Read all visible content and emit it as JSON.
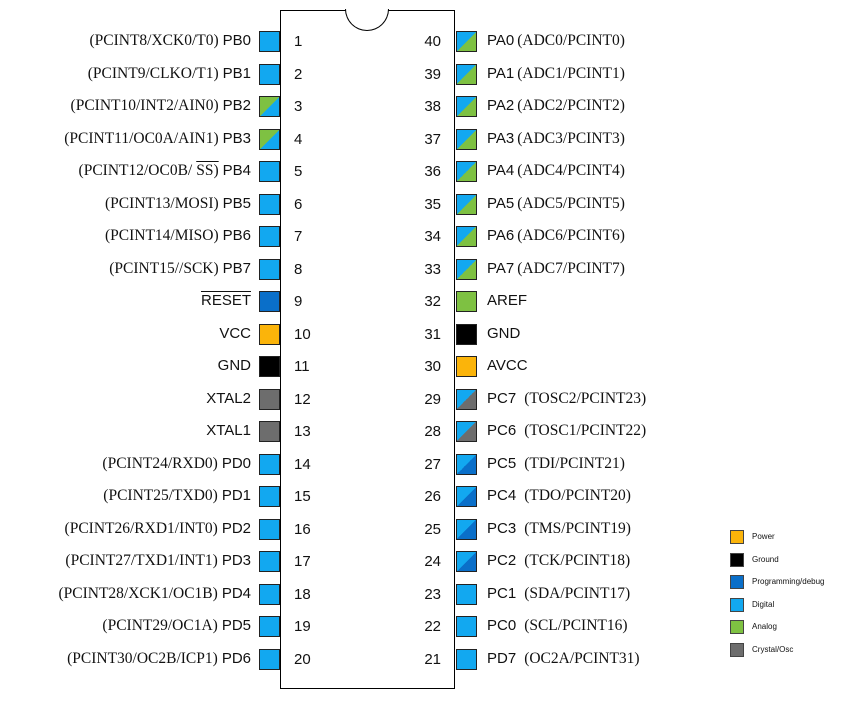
{
  "colors": {
    "power": "#fbb40a",
    "ground": "#000000",
    "programming": "#0a6fc9",
    "digital": "#12a8f0",
    "analog": "#7ec142",
    "crystal": "#6d6d6d"
  },
  "left_pins": [
    {
      "num": "1",
      "name": "PB0",
      "alt": "(PCINT8/XCK0/T0)",
      "kind": "digital"
    },
    {
      "num": "2",
      "name": "PB1",
      "alt": "(PCINT9/CLKO/T1)",
      "kind": "digital"
    },
    {
      "num": "3",
      "name": "PB2",
      "alt": "(PCINT10/INT2/AIN0)",
      "kind": "digital-analog"
    },
    {
      "num": "4",
      "name": "PB3",
      "alt": "(PCINT11/OC0A/AIN1)",
      "kind": "digital-analog"
    },
    {
      "num": "5",
      "name": "PB4",
      "alt": "(PCINT12/OC0B/",
      "alt_overline": "SS)",
      "kind": "digital"
    },
    {
      "num": "6",
      "name": "PB5",
      "alt": "(PCINT13/MOSI)",
      "kind": "digital"
    },
    {
      "num": "7",
      "name": "PB6",
      "alt": "(PCINT14/MISO)",
      "kind": "digital"
    },
    {
      "num": "8",
      "name": "PB7",
      "alt": "(PCINT15//SCK)",
      "kind": "digital"
    },
    {
      "num": "9",
      "name": "RESET",
      "alt": "",
      "overline": true,
      "kind": "programming"
    },
    {
      "num": "10",
      "name": "VCC",
      "alt": "",
      "kind": "power"
    },
    {
      "num": "11",
      "name": "GND",
      "alt": "",
      "kind": "ground"
    },
    {
      "num": "12",
      "name": "XTAL2",
      "alt": "",
      "kind": "crystal"
    },
    {
      "num": "13",
      "name": "XTAL1",
      "alt": "",
      "kind": "crystal"
    },
    {
      "num": "14",
      "name": "PD0",
      "alt": "(PCINT24/RXD0)",
      "kind": "digital"
    },
    {
      "num": "15",
      "name": "PD1",
      "alt": "(PCINT25/TXD0)",
      "kind": "digital"
    },
    {
      "num": "16",
      "name": "PD2",
      "alt": "(PCINT26/RXD1/INT0)",
      "kind": "digital"
    },
    {
      "num": "17",
      "name": "PD3",
      "alt": "(PCINT27/TXD1/INT1)",
      "kind": "digital"
    },
    {
      "num": "18",
      "name": "PD4",
      "alt": "(PCINT28/XCK1/OC1B)",
      "kind": "digital"
    },
    {
      "num": "19",
      "name": "PD5",
      "alt": "(PCINT29/OC1A)",
      "kind": "digital"
    },
    {
      "num": "20",
      "name": "PD6",
      "alt": "(PCINT30/OC2B/ICP1)",
      "kind": "digital"
    }
  ],
  "right_pins": [
    {
      "num": "40",
      "name": "PA0",
      "alt": "(ADC0/PCINT0)",
      "kind": "analog-digital"
    },
    {
      "num": "39",
      "name": "PA1",
      "alt": "(ADC1/PCINT1)",
      "kind": "analog-digital"
    },
    {
      "num": "38",
      "name": "PA2",
      "alt": "(ADC2/PCINT2)",
      "kind": "analog-digital"
    },
    {
      "num": "37",
      "name": "PA3",
      "alt": "(ADC3/PCINT3)",
      "kind": "analog-digital"
    },
    {
      "num": "36",
      "name": "PA4",
      "alt": "(ADC4/PCINT4)",
      "kind": "analog-digital"
    },
    {
      "num": "35",
      "name": "PA5",
      "alt": "(ADC5/PCINT5)",
      "kind": "analog-digital"
    },
    {
      "num": "34",
      "name": "PA6",
      "alt": "(ADC6/PCINT6)",
      "kind": "analog-digital"
    },
    {
      "num": "33",
      "name": "PA7",
      "alt": "(ADC7/PCINT7)",
      "kind": "analog-digital"
    },
    {
      "num": "32",
      "name": "AREF",
      "alt": "",
      "kind": "analog"
    },
    {
      "num": "31",
      "name": "GND",
      "alt": "",
      "kind": "ground"
    },
    {
      "num": "30",
      "name": "AVCC",
      "alt": "",
      "kind": "power"
    },
    {
      "num": "29",
      "name": "PC7",
      "alt": "(TOSC2/PCINT23)",
      "kind": "crystal-digital"
    },
    {
      "num": "28",
      "name": "PC6",
      "alt": "(TOSC1/PCINT22)",
      "kind": "crystal-digital"
    },
    {
      "num": "27",
      "name": "PC5",
      "alt": "(TDI/PCINT21)",
      "kind": "programming-digital"
    },
    {
      "num": "26",
      "name": "PC4",
      "alt": "(TDO/PCINT20)",
      "kind": "programming-digital"
    },
    {
      "num": "25",
      "name": "PC3",
      "alt": "(TMS/PCINT19)",
      "kind": "programming-digital"
    },
    {
      "num": "24",
      "name": "PC2",
      "alt": "(TCK/PCINT18)",
      "kind": "programming-digital"
    },
    {
      "num": "23",
      "name": "PC1",
      "alt": "(SDA/PCINT17)",
      "kind": "digital"
    },
    {
      "num": "22",
      "name": "PC0",
      "alt": "(SCL/PCINT16)",
      "kind": "digital"
    },
    {
      "num": "21",
      "name": "PD7",
      "alt": "(OC2A/PCINT31)",
      "kind": "digital"
    }
  ],
  "legend": [
    {
      "label": "Power",
      "kind": "power"
    },
    {
      "label": "Ground",
      "kind": "ground"
    },
    {
      "label": "Programming/debug",
      "kind": "programming"
    },
    {
      "label": "Digital",
      "kind": "digital"
    },
    {
      "label": "Analog",
      "kind": "analog"
    },
    {
      "label": "Crystal/Osc",
      "kind": "crystal"
    }
  ]
}
